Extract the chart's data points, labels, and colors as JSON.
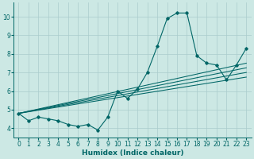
{
  "xlabel": "Humidex (Indice chaleur)",
  "background_color": "#cce8e4",
  "grid_color": "#aacccc",
  "line_color": "#006666",
  "xlim": [
    -0.5,
    23.5
  ],
  "ylim": [
    3.5,
    10.75
  ],
  "yticks": [
    4,
    5,
    6,
    7,
    8,
    9,
    10
  ],
  "xticks": [
    0,
    1,
    2,
    3,
    4,
    5,
    6,
    7,
    8,
    9,
    10,
    11,
    12,
    13,
    14,
    15,
    16,
    17,
    18,
    19,
    20,
    21,
    22,
    23
  ],
  "main_x": [
    0,
    1,
    2,
    3,
    4,
    5,
    6,
    7,
    8,
    9,
    10,
    11,
    12,
    13,
    14,
    15,
    16,
    17,
    18,
    19,
    20,
    21,
    22,
    23
  ],
  "main_y": [
    4.8,
    4.4,
    4.6,
    4.5,
    4.4,
    4.2,
    4.1,
    4.2,
    3.9,
    4.6,
    6.0,
    5.6,
    6.1,
    7.0,
    8.4,
    9.9,
    10.2,
    10.2,
    7.9,
    7.5,
    7.4,
    6.6,
    7.4,
    8.3
  ],
  "reg_lines": [
    {
      "x0": 0,
      "y0": 4.8,
      "x1": 23,
      "y1": 7.5
    },
    {
      "x0": 0,
      "y0": 4.8,
      "x1": 23,
      "y1": 7.25
    },
    {
      "x0": 0,
      "y0": 4.8,
      "x1": 23,
      "y1": 7.0
    },
    {
      "x0": 0,
      "y0": 4.8,
      "x1": 23,
      "y1": 6.75
    }
  ]
}
